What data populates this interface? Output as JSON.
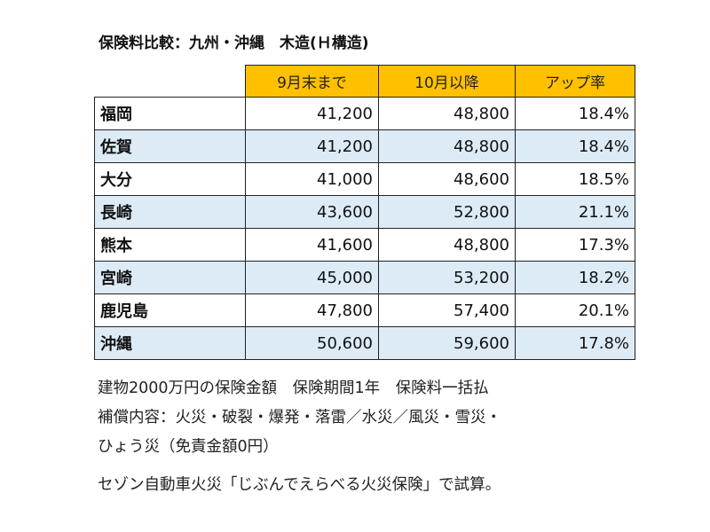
{
  "title": "保険料比較：九州・沖縄　木造(Ｈ構造)",
  "table": {
    "headers": [
      "",
      "9月末まで",
      "10月以降",
      "アップ率"
    ],
    "rows": [
      {
        "prefecture": "福岡",
        "until_sep": "41,200",
        "from_oct": "48,800",
        "increase": "18.4%"
      },
      {
        "prefecture": "佐賀",
        "until_sep": "41,200",
        "from_oct": "48,800",
        "increase": "18.4%"
      },
      {
        "prefecture": "大分",
        "until_sep": "41,000",
        "from_oct": "48,600",
        "increase": "18.5%"
      },
      {
        "prefecture": "長崎",
        "until_sep": "43,600",
        "from_oct": "52,800",
        "increase": "21.1%"
      },
      {
        "prefecture": "熊本",
        "until_sep": "41,600",
        "from_oct": "48,800",
        "increase": "17.3%"
      },
      {
        "prefecture": "宮崎",
        "until_sep": "45,000",
        "from_oct": "53,200",
        "increase": "18.2%"
      },
      {
        "prefecture": "鹿児島",
        "until_sep": "47,800",
        "from_oct": "57,400",
        "increase": "20.1%"
      },
      {
        "prefecture": "沖縄",
        "until_sep": "50,600",
        "from_oct": "59,600",
        "increase": "17.8%"
      }
    ]
  },
  "notes": [
    "建物2000万円の保険金額　保険期間1年　保険料一括払",
    "補償内容：火災・破裂・爆発・落雷／水災／風災・雪災・",
    "ひょう災（免責金額0円）",
    "セゾン自動車火災「じぶんでえらべる火災保険」で試算。"
  ],
  "colors": {
    "header": "#FFC000",
    "alt_row": "#DDEBF7"
  }
}
